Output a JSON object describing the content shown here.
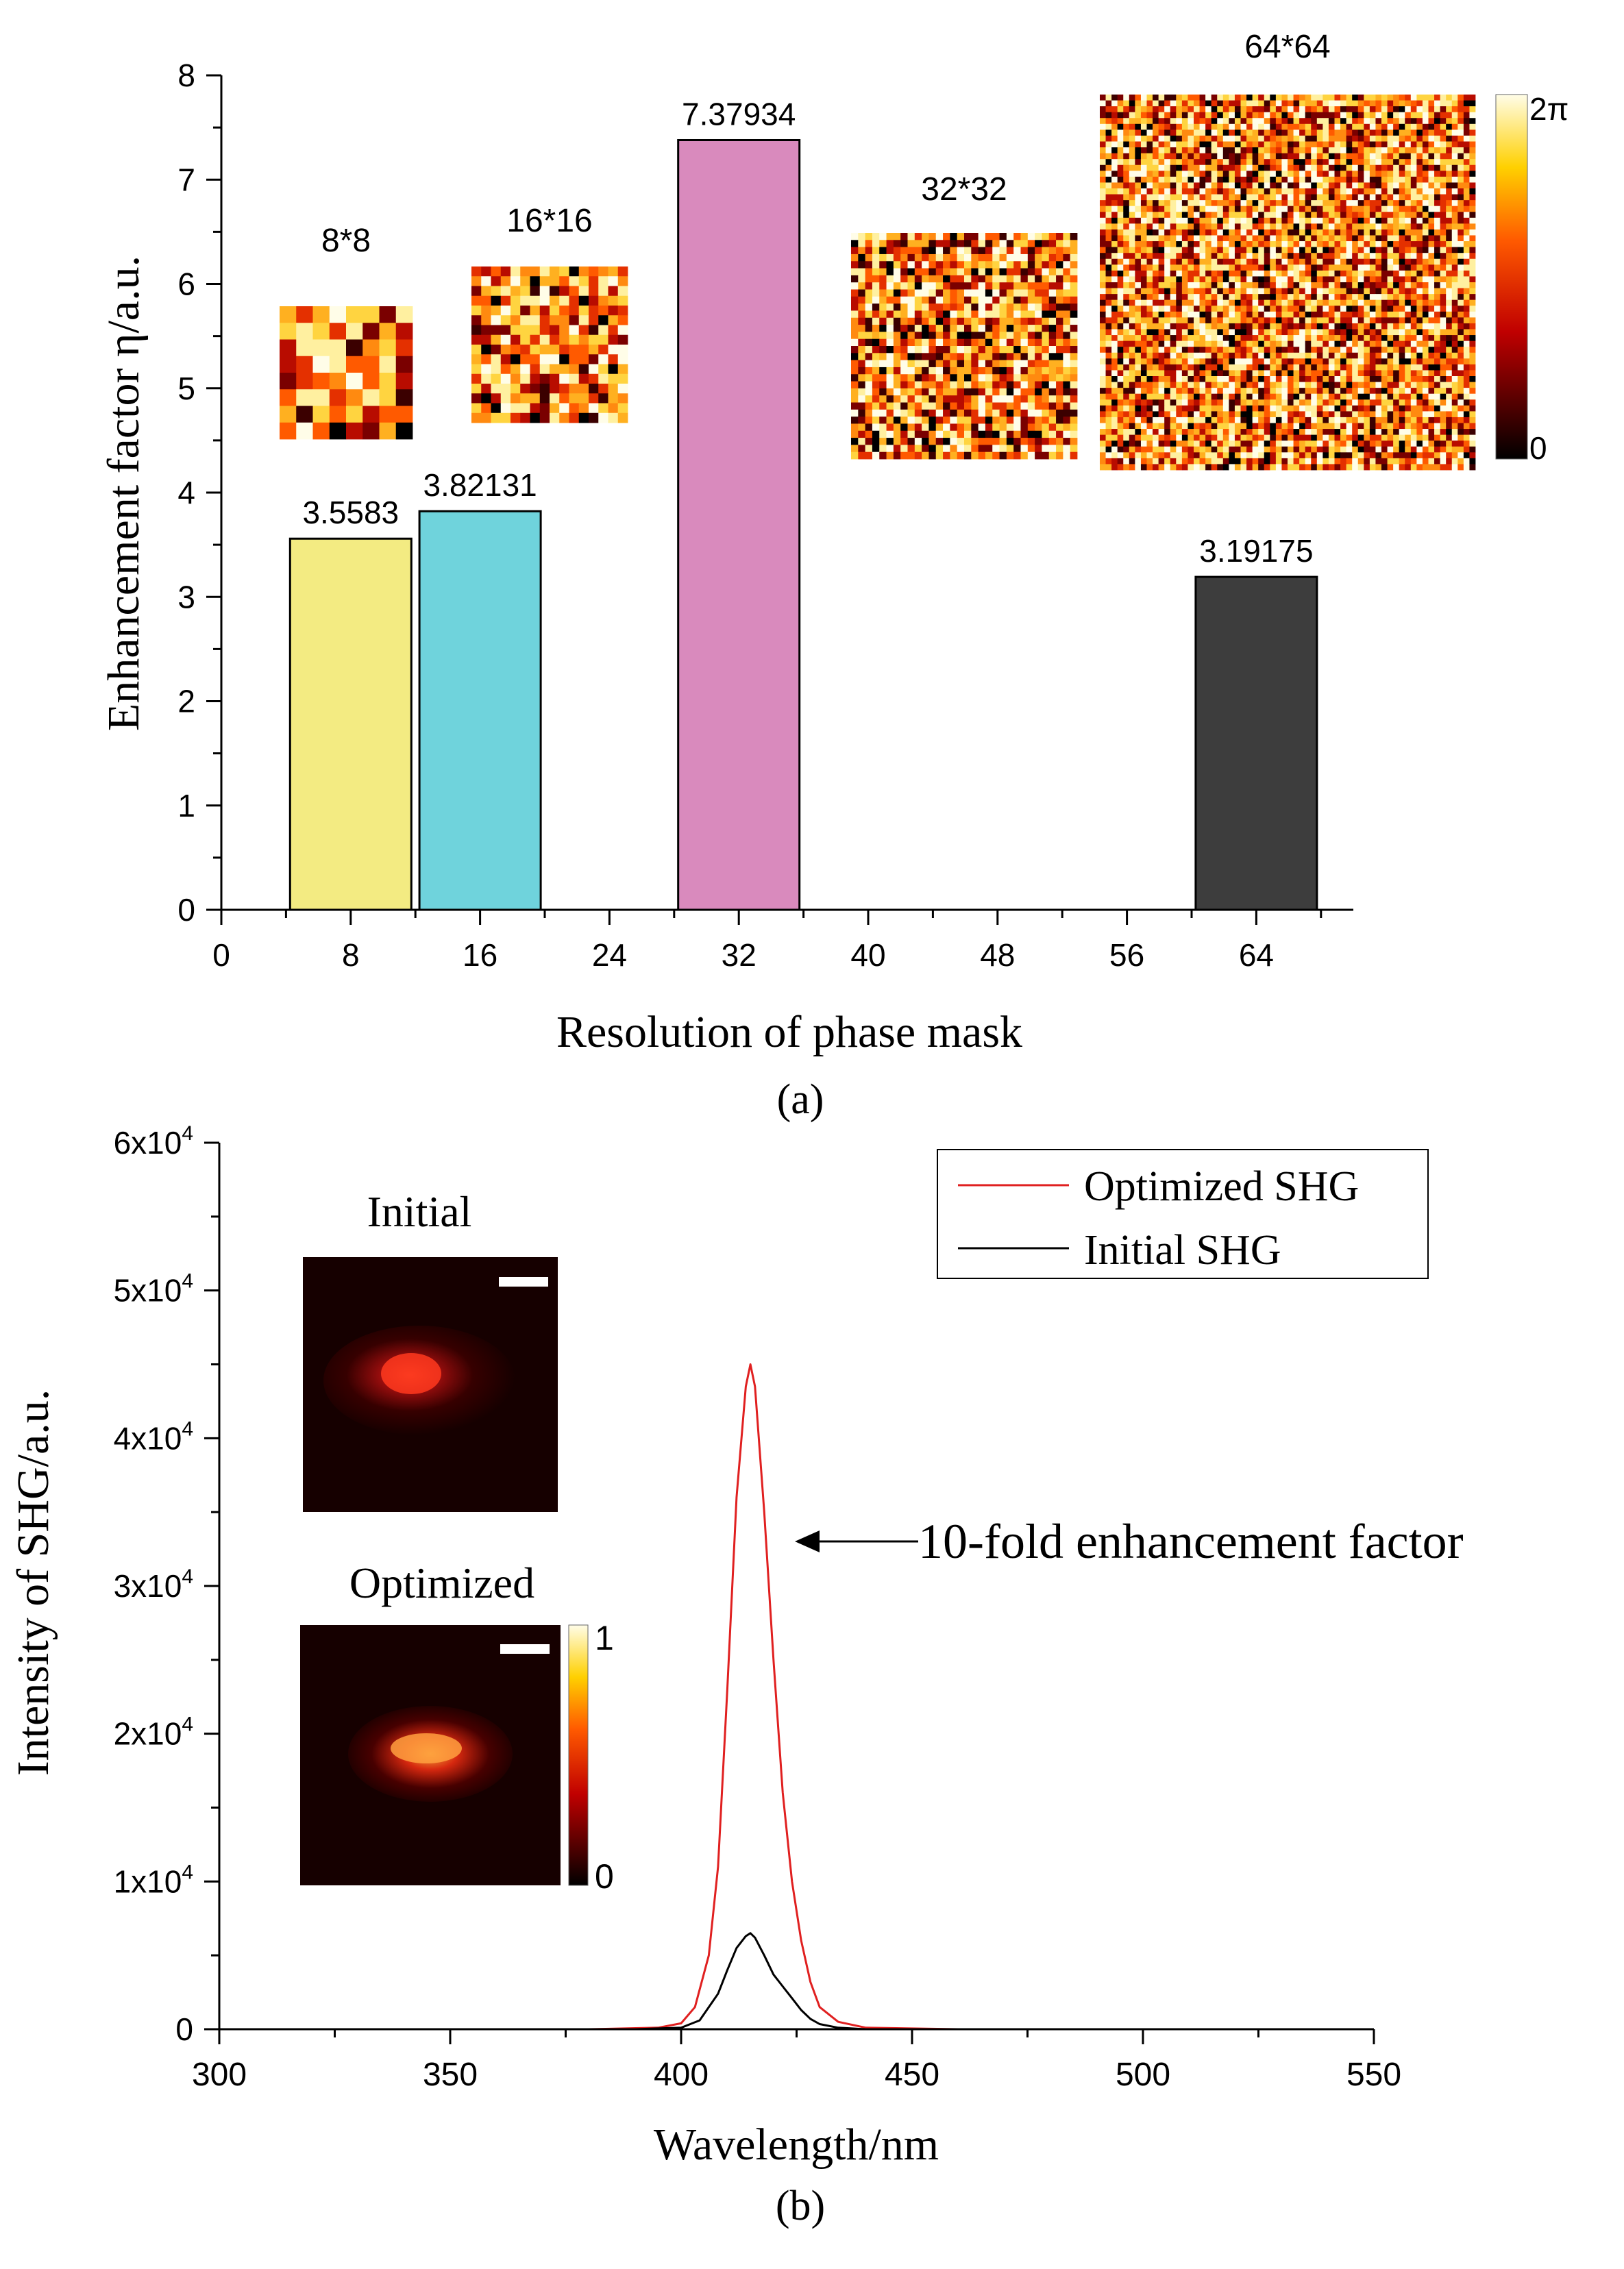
{
  "chart_data": [
    {
      "id": "a",
      "type": "bar",
      "panel_label": "(a)",
      "xlabel": "Resolution of phase mask",
      "ylabel": "Enhancement factor η/a.u.",
      "xlim": [
        0,
        70
      ],
      "ylim": [
        0,
        8
      ],
      "x_ticks": [
        0,
        8,
        16,
        24,
        32,
        40,
        48,
        56,
        64
      ],
      "y_ticks": [
        0,
        1,
        2,
        3,
        4,
        5,
        6,
        7,
        8
      ],
      "bar_width": 7.5,
      "bars": [
        {
          "x": 8,
          "value": 3.5583,
          "label": "3.5583",
          "color": "#f3eb82"
        },
        {
          "x": 16,
          "value": 3.82131,
          "label": "3.82131",
          "color": "#6fd3dc"
        },
        {
          "x": 32,
          "value": 7.37934,
          "label": "7.37934",
          "color": "#d98abd"
        },
        {
          "x": 64,
          "value": 3.19175,
          "label": "3.19175",
          "color": "#3d3d3d"
        }
      ],
      "inset_masks": [
        {
          "label": "8*8",
          "resolution": 8
        },
        {
          "label": "16*16",
          "resolution": 16
        },
        {
          "label": "32*32",
          "resolution": 32
        },
        {
          "label": "64*64",
          "resolution": 64
        }
      ],
      "colorbar": {
        "max_label": "2π",
        "min_label": "0",
        "colormap": "hot"
      }
    },
    {
      "id": "b",
      "type": "line",
      "panel_label": "(b)",
      "xlabel": "Wavelength/nm",
      "ylabel": "Intensity of SHG/a.u.",
      "xlim": [
        300,
        550
      ],
      "ylim": [
        0,
        60000
      ],
      "x_ticks": [
        300,
        350,
        400,
        450,
        500,
        550
      ],
      "y_ticks": [
        0,
        10000,
        20000,
        30000,
        40000,
        50000,
        60000
      ],
      "y_tick_labels": [
        {
          "base": "0",
          "exp": ""
        },
        {
          "base": "1x10",
          "exp": "4"
        },
        {
          "base": "2x10",
          "exp": "4"
        },
        {
          "base": "3x10",
          "exp": "4"
        },
        {
          "base": "4x10",
          "exp": "4"
        },
        {
          "base": "5x10",
          "exp": "4"
        },
        {
          "base": "6x10",
          "exp": "4"
        }
      ],
      "series": [
        {
          "name": "Optimized SHG",
          "color": "#e02020",
          "x": [
            300,
            380,
            395,
            400,
            403,
            406,
            408,
            410,
            412,
            414,
            415,
            416,
            418,
            420,
            422,
            424,
            426,
            428,
            430,
            434,
            440,
            460,
            550
          ],
          "y": [
            0,
            0,
            100,
            400,
            1500,
            5000,
            11000,
            23000,
            36000,
            43500,
            45000,
            43500,
            35000,
            25000,
            16000,
            10000,
            6000,
            3200,
            1500,
            500,
            100,
            0,
            0
          ]
        },
        {
          "name": "Initial SHG",
          "color": "#000000",
          "x": [
            300,
            390,
            400,
            404,
            408,
            410,
            412,
            414,
            415,
            416,
            418,
            420,
            422,
            424,
            426,
            428,
            430,
            434,
            440,
            460,
            550
          ],
          "y": [
            0,
            0,
            100,
            600,
            2400,
            4000,
            5500,
            6300,
            6500,
            6200,
            5000,
            3700,
            2900,
            2100,
            1300,
            700,
            350,
            100,
            0,
            0,
            0
          ]
        }
      ],
      "annotation": "10-fold enhancement factor",
      "insets": [
        {
          "title": "Initial",
          "kind": "speckle"
        },
        {
          "title": "Optimized",
          "kind": "focus"
        }
      ],
      "colorbar": {
        "max_label": "1",
        "min_label": "0",
        "colormap": "hot"
      }
    }
  ]
}
